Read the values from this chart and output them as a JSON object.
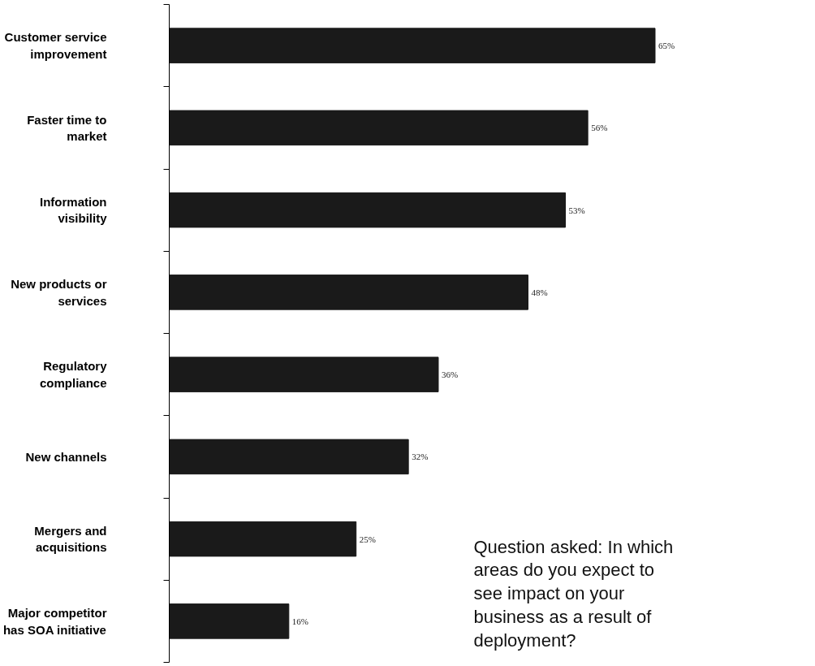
{
  "chart_data": {
    "type": "bar",
    "orientation": "horizontal",
    "categories": [
      "Customer service\nimprovement",
      "Faster time to\nmarket",
      "Information\nvisibility",
      "New products or\nservices",
      "Regulatory\ncompliance",
      "New channels",
      "Mergers and\nacquisitions",
      "Major competitor\nhas SOA initiative"
    ],
    "values": [
      65,
      56,
      53,
      48,
      36,
      32,
      25,
      16
    ],
    "value_labels": [
      "65%",
      "56%",
      "53%",
      "48%",
      "36%",
      "32%",
      "25%",
      "16%"
    ],
    "color": "#1a1a1a",
    "grid": false,
    "annotations": [
      "Question asked: In which areas do you expect to see impact on your business as a result of deployment?"
    ]
  }
}
